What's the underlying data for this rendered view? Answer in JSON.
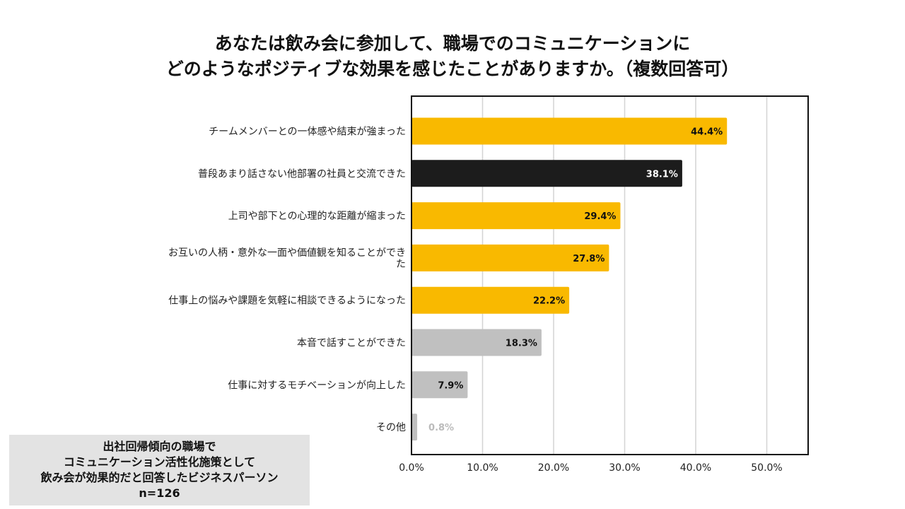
{
  "title": {
    "line1": "あなたは飲み会に参加して、職場でのコミュニケーションに",
    "line2": "どのようなポジティブな効果を感じたことがありますか。（複数回答可）"
  },
  "chart_data": {
    "type": "bar",
    "orientation": "horizontal",
    "categories": [
      "チームメンバーとの一体感や結束が強まった",
      "普段あまり話さない他部署の社員と交流できた",
      "上司や部下との心理的な距離が縮まった",
      "お互いの人柄・意外な一面や価値観を知ることができた",
      "仕事上の悩みや課題を気軽に相談できるようになった",
      "本音で話すことができた",
      "仕事に対するモチベーションが向上した",
      "その他"
    ],
    "category_lines": [
      [
        "チームメンバーとの一体感や結束が強まった"
      ],
      [
        "普段あまり話さない他部署の社員と交流できた"
      ],
      [
        "上司や部下との心理的な距離が縮まった"
      ],
      [
        "お互いの人柄・意外な一面や価値観を知ることができ",
        "た"
      ],
      [
        "仕事上の悩みや課題を気軽に相談できるようになった"
      ],
      [
        "本音で話すことができた"
      ],
      [
        "仕事に対するモチベーションが向上した"
      ],
      [
        "その他"
      ]
    ],
    "values": [
      44.4,
      38.1,
      29.4,
      27.8,
      22.2,
      18.3,
      7.9,
      0.8
    ],
    "data_labels": [
      "44.4%",
      "38.1%",
      "29.4%",
      "27.8%",
      "22.2%",
      "18.3%",
      "7.9%",
      "0.8%"
    ],
    "colors": [
      "#f9b900",
      "#1c1c1c",
      "#f9b900",
      "#f9b900",
      "#f9b900",
      "#c0c0c0",
      "#c0c0c0",
      "#c0c0c0"
    ],
    "label_colors": [
      "#111111",
      "#ffffff",
      "#111111",
      "#111111",
      "#111111",
      "#111111",
      "#111111",
      "#bbbbbb"
    ],
    "xlim": [
      0,
      55
    ],
    "xticks": [
      0,
      10,
      20,
      30,
      40,
      50
    ],
    "xtick_labels": [
      "0.0%",
      "10.0%",
      "20.0%",
      "30.0%",
      "40.0%",
      "50.0%"
    ],
    "grid": true,
    "xlabel": "",
    "ylabel": ""
  },
  "note": {
    "lines": [
      "出社回帰傾向の職場で",
      "コミュニケーション活性化施策として",
      "飲み会が効果的だと回答したビジネスパーソン",
      "n=126"
    ]
  },
  "colors": {
    "accent": "#f9b900",
    "dark": "#1c1c1c",
    "muted": "#c0c0c0",
    "grid": "#d4d4d4",
    "note_bg": "#e3e3e3"
  }
}
